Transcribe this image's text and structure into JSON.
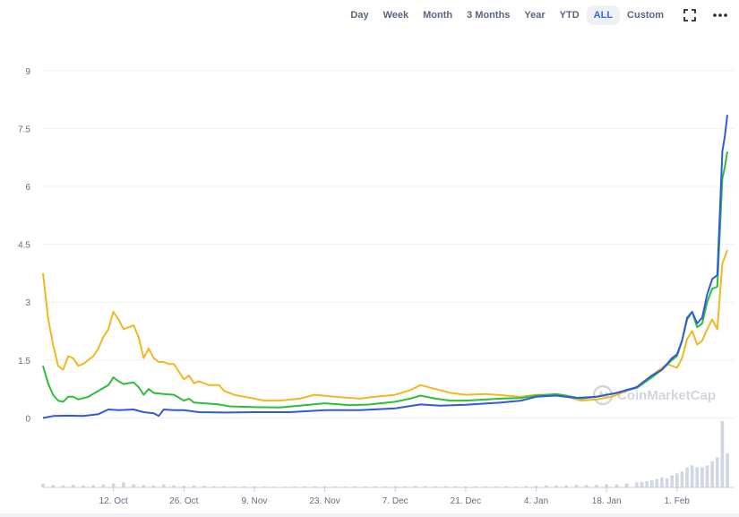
{
  "toolbar": {
    "ranges": [
      "Day",
      "Week",
      "Month",
      "3 Months",
      "Year",
      "YTD",
      "ALL",
      "Custom"
    ],
    "active_range": "ALL",
    "fullscreen_icon": "fullscreen-icon",
    "more_icon": "more-dots-icon"
  },
  "watermark": {
    "text": "CoinMarketCap",
    "icon": "coinmarketcap-logo-icon"
  },
  "colors": {
    "blue": "#3358e0",
    "green": "#2ebd3c",
    "yellow": "#f3b71f",
    "grid": "#eef0f3",
    "volume": "#cfd6e4"
  },
  "chart_data": {
    "type": "line",
    "ylim": [
      -1.8,
      9.9
    ],
    "yticks": [
      "0",
      "1.5",
      "3",
      "4.5",
      "6",
      "7.5",
      "9"
    ],
    "x_tick_labels": [
      "12. Oct",
      "26. Oct",
      "9. Nov",
      "23. Nov",
      "7. Dec",
      "21. Dec",
      "4. Jan",
      "18. Jan",
      "1. Feb"
    ],
    "x_tick_dates": [
      "2020-10-12",
      "2020-10-26",
      "2020-11-09",
      "2020-11-23",
      "2020-12-07",
      "2020-12-21",
      "2021-01-04",
      "2021-01-18",
      "2021-02-01"
    ],
    "x_range": [
      "2020-09-28",
      "2021-02-11"
    ],
    "grid": true,
    "series": [
      {
        "color": "yellow",
        "points": [
          [
            "2020-09-28",
            3.75
          ],
          [
            "2020-09-29",
            2.6
          ],
          [
            "2020-09-30",
            1.9
          ],
          [
            "2020-10-01",
            1.35
          ],
          [
            "2020-10-02",
            1.25
          ],
          [
            "2020-10-03",
            1.6
          ],
          [
            "2020-10-04",
            1.55
          ],
          [
            "2020-10-05",
            1.35
          ],
          [
            "2020-10-06",
            1.4
          ],
          [
            "2020-10-07",
            1.5
          ],
          [
            "2020-10-08",
            1.6
          ],
          [
            "2020-10-09",
            1.8
          ],
          [
            "2020-10-10",
            2.1
          ],
          [
            "2020-10-11",
            2.3
          ],
          [
            "2020-10-12",
            2.75
          ],
          [
            "2020-10-13",
            2.55
          ],
          [
            "2020-10-14",
            2.3
          ],
          [
            "2020-10-15",
            2.35
          ],
          [
            "2020-10-16",
            2.4
          ],
          [
            "2020-10-17",
            2.1
          ],
          [
            "2020-10-18",
            1.55
          ],
          [
            "2020-10-19",
            1.8
          ],
          [
            "2020-10-20",
            1.55
          ],
          [
            "2020-10-21",
            1.45
          ],
          [
            "2020-10-22",
            1.45
          ],
          [
            "2020-10-23",
            1.4
          ],
          [
            "2020-10-24",
            1.4
          ],
          [
            "2020-10-25",
            1.2
          ],
          [
            "2020-10-26",
            1.0
          ],
          [
            "2020-10-27",
            1.1
          ],
          [
            "2020-10-28",
            0.9
          ],
          [
            "2020-10-29",
            0.95
          ],
          [
            "2020-10-31",
            0.85
          ],
          [
            "2020-11-02",
            0.85
          ],
          [
            "2020-11-03",
            0.7
          ],
          [
            "2020-11-05",
            0.6
          ],
          [
            "2020-11-07",
            0.55
          ],
          [
            "2020-11-09",
            0.5
          ],
          [
            "2020-11-11",
            0.45
          ],
          [
            "2020-11-14",
            0.45
          ],
          [
            "2020-11-18",
            0.5
          ],
          [
            "2020-11-21",
            0.6
          ],
          [
            "2020-11-25",
            0.55
          ],
          [
            "2020-11-30",
            0.5
          ],
          [
            "2020-12-03",
            0.55
          ],
          [
            "2020-12-07",
            0.6
          ],
          [
            "2020-12-10",
            0.72
          ],
          [
            "2020-12-12",
            0.85
          ],
          [
            "2020-12-15",
            0.75
          ],
          [
            "2020-12-18",
            0.65
          ],
          [
            "2020-12-21",
            0.6
          ],
          [
            "2020-12-25",
            0.62
          ],
          [
            "2020-12-29",
            0.58
          ],
          [
            "2021-01-01",
            0.55
          ],
          [
            "2021-01-04",
            0.6
          ],
          [
            "2021-01-07",
            0.6
          ],
          [
            "2021-01-10",
            0.55
          ],
          [
            "2021-01-13",
            0.45
          ],
          [
            "2021-01-16",
            0.48
          ],
          [
            "2021-01-19",
            0.55
          ],
          [
            "2021-01-22",
            0.7
          ],
          [
            "2021-01-24",
            0.8
          ],
          [
            "2021-01-26",
            1.0
          ],
          [
            "2021-01-28",
            1.2
          ],
          [
            "2021-01-30",
            1.4
          ],
          [
            "2021-02-01",
            1.3
          ],
          [
            "2021-02-02",
            1.55
          ],
          [
            "2021-02-03",
            2.05
          ],
          [
            "2021-02-04",
            2.25
          ],
          [
            "2021-02-05",
            1.9
          ],
          [
            "2021-02-06",
            2.0
          ],
          [
            "2021-02-07",
            2.3
          ],
          [
            "2021-02-08",
            2.55
          ],
          [
            "2021-02-09",
            2.3
          ],
          [
            "2021-02-10",
            4.0
          ],
          [
            "2021-02-11",
            4.35
          ]
        ]
      },
      {
        "color": "green",
        "points": [
          [
            "2020-09-28",
            1.35
          ],
          [
            "2020-09-29",
            0.9
          ],
          [
            "2020-09-30",
            0.6
          ],
          [
            "2020-10-01",
            0.45
          ],
          [
            "2020-10-02",
            0.42
          ],
          [
            "2020-10-03",
            0.55
          ],
          [
            "2020-10-04",
            0.55
          ],
          [
            "2020-10-05",
            0.48
          ],
          [
            "2020-10-07",
            0.55
          ],
          [
            "2020-10-09",
            0.7
          ],
          [
            "2020-10-11",
            0.85
          ],
          [
            "2020-10-12",
            1.05
          ],
          [
            "2020-10-13",
            0.95
          ],
          [
            "2020-10-14",
            0.88
          ],
          [
            "2020-10-16",
            0.92
          ],
          [
            "2020-10-17",
            0.8
          ],
          [
            "2020-10-18",
            0.6
          ],
          [
            "2020-10-19",
            0.75
          ],
          [
            "2020-10-20",
            0.65
          ],
          [
            "2020-10-22",
            0.62
          ],
          [
            "2020-10-24",
            0.6
          ],
          [
            "2020-10-26",
            0.45
          ],
          [
            "2020-10-27",
            0.5
          ],
          [
            "2020-10-28",
            0.4
          ],
          [
            "2020-11-02",
            0.35
          ],
          [
            "2020-11-04",
            0.3
          ],
          [
            "2020-11-09",
            0.28
          ],
          [
            "2020-11-14",
            0.27
          ],
          [
            "2020-11-18",
            0.32
          ],
          [
            "2020-11-23",
            0.38
          ],
          [
            "2020-11-28",
            0.33
          ],
          [
            "2020-12-02",
            0.35
          ],
          [
            "2020-12-07",
            0.42
          ],
          [
            "2020-12-10",
            0.5
          ],
          [
            "2020-12-12",
            0.58
          ],
          [
            "2020-12-15",
            0.5
          ],
          [
            "2020-12-18",
            0.45
          ],
          [
            "2020-12-21",
            0.45
          ],
          [
            "2020-12-28",
            0.5
          ],
          [
            "2021-01-01",
            0.52
          ],
          [
            "2021-01-04",
            0.58
          ],
          [
            "2021-01-08",
            0.62
          ],
          [
            "2021-01-10",
            0.58
          ],
          [
            "2021-01-13",
            0.5
          ],
          [
            "2021-01-16",
            0.55
          ],
          [
            "2021-01-20",
            0.65
          ],
          [
            "2021-01-24",
            0.78
          ],
          [
            "2021-01-27",
            1.05
          ],
          [
            "2021-01-29",
            1.25
          ],
          [
            "2021-01-31",
            1.5
          ],
          [
            "2021-02-01",
            1.6
          ],
          [
            "2021-02-02",
            2.0
          ],
          [
            "2021-02-03",
            2.55
          ],
          [
            "2021-02-04",
            2.75
          ],
          [
            "2021-02-05",
            2.35
          ],
          [
            "2021-02-06",
            2.45
          ],
          [
            "2021-02-07",
            3.0
          ],
          [
            "2021-02-08",
            3.35
          ],
          [
            "2021-02-09",
            3.4
          ],
          [
            "2021-02-10",
            6.2
          ],
          [
            "2021-02-10T12",
            6.5
          ],
          [
            "2021-02-11",
            6.9
          ]
        ]
      },
      {
        "color": "blue",
        "points": [
          [
            "2020-09-28",
            0.0
          ],
          [
            "2020-09-30",
            0.05
          ],
          [
            "2020-10-03",
            0.06
          ],
          [
            "2020-10-06",
            0.05
          ],
          [
            "2020-10-09",
            0.1
          ],
          [
            "2020-10-11",
            0.22
          ],
          [
            "2020-10-13",
            0.2
          ],
          [
            "2020-10-16",
            0.22
          ],
          [
            "2020-10-18",
            0.15
          ],
          [
            "2020-10-20",
            0.12
          ],
          [
            "2020-10-21",
            0.05
          ],
          [
            "2020-10-22",
            0.22
          ],
          [
            "2020-10-24",
            0.2
          ],
          [
            "2020-10-26",
            0.2
          ],
          [
            "2020-10-29",
            0.15
          ],
          [
            "2020-11-03",
            0.14
          ],
          [
            "2020-11-09",
            0.15
          ],
          [
            "2020-11-16",
            0.15
          ],
          [
            "2020-11-23",
            0.2
          ],
          [
            "2020-11-30",
            0.2
          ],
          [
            "2020-12-07",
            0.25
          ],
          [
            "2020-12-12",
            0.35
          ],
          [
            "2020-12-16",
            0.32
          ],
          [
            "2020-12-21",
            0.34
          ],
          [
            "2020-12-28",
            0.4
          ],
          [
            "2021-01-01",
            0.45
          ],
          [
            "2021-01-04",
            0.55
          ],
          [
            "2021-01-08",
            0.58
          ],
          [
            "2021-01-12",
            0.52
          ],
          [
            "2021-01-16",
            0.55
          ],
          [
            "2021-01-20",
            0.65
          ],
          [
            "2021-01-24",
            0.8
          ],
          [
            "2021-01-27",
            1.1
          ],
          [
            "2021-01-29",
            1.25
          ],
          [
            "2021-01-31",
            1.55
          ],
          [
            "2021-02-01",
            1.65
          ],
          [
            "2021-02-02",
            2.0
          ],
          [
            "2021-02-03",
            2.6
          ],
          [
            "2021-02-04",
            2.75
          ],
          [
            "2021-02-05",
            2.45
          ],
          [
            "2021-02-06",
            2.6
          ],
          [
            "2021-02-07",
            3.2
          ],
          [
            "2021-02-08",
            3.6
          ],
          [
            "2021-02-09",
            3.7
          ],
          [
            "2021-02-10",
            6.9
          ],
          [
            "2021-02-10T12",
            7.3
          ],
          [
            "2021-02-11",
            7.85
          ]
        ]
      }
    ],
    "volume": {
      "dates": [
        "2020-09-28",
        "2020-09-30",
        "2020-10-02",
        "2020-10-04",
        "2020-10-06",
        "2020-10-08",
        "2020-10-10",
        "2020-10-12",
        "2020-10-14",
        "2020-10-16",
        "2020-10-18",
        "2020-10-20",
        "2020-10-22",
        "2020-10-24",
        "2020-10-26",
        "2020-10-28",
        "2020-10-30",
        "2020-11-01",
        "2020-11-03",
        "2020-11-05",
        "2020-11-07",
        "2020-11-09",
        "2020-11-11",
        "2020-11-13",
        "2020-11-15",
        "2020-11-17",
        "2020-11-19",
        "2020-11-21",
        "2020-11-23",
        "2020-11-25",
        "2020-11-27",
        "2020-11-29",
        "2020-12-01",
        "2020-12-03",
        "2020-12-05",
        "2020-12-07",
        "2020-12-09",
        "2020-12-11",
        "2020-12-13",
        "2020-12-15",
        "2020-12-17",
        "2020-12-19",
        "2020-12-21",
        "2020-12-23",
        "2020-12-25",
        "2020-12-27",
        "2020-12-29",
        "2020-12-31",
        "2021-01-02",
        "2021-01-04",
        "2021-01-06",
        "2021-01-08",
        "2021-01-10",
        "2021-01-12",
        "2021-01-14",
        "2021-01-16",
        "2021-01-18",
        "2021-01-20",
        "2021-01-22",
        "2021-01-24",
        "2021-01-25",
        "2021-01-26",
        "2021-01-27",
        "2021-01-28",
        "2021-01-29",
        "2021-01-30",
        "2021-01-31",
        "2021-02-01",
        "2021-02-02",
        "2021-02-03",
        "2021-02-04",
        "2021-02-05",
        "2021-02-06",
        "2021-02-07",
        "2021-02-08",
        "2021-02-09",
        "2021-02-10",
        "2021-02-11"
      ],
      "values": [
        0.18,
        0.12,
        0.1,
        0.12,
        0.1,
        0.12,
        0.15,
        0.2,
        0.25,
        0.15,
        0.12,
        0.1,
        0.15,
        0.1,
        0.08,
        0.1,
        0.08,
        0.06,
        0.06,
        0.05,
        0.06,
        0.05,
        0.05,
        0.04,
        0.04,
        0.05,
        0.05,
        0.06,
        0.06,
        0.05,
        0.05,
        0.05,
        0.05,
        0.05,
        0.05,
        0.06,
        0.06,
        0.08,
        0.07,
        0.06,
        0.06,
        0.06,
        0.06,
        0.05,
        0.05,
        0.05,
        0.06,
        0.06,
        0.07,
        0.08,
        0.1,
        0.1,
        0.1,
        0.12,
        0.12,
        0.12,
        0.15,
        0.15,
        0.2,
        0.25,
        0.28,
        0.3,
        0.35,
        0.42,
        0.5,
        0.45,
        0.6,
        0.7,
        0.8,
        1.0,
        1.1,
        1.0,
        1.0,
        1.1,
        1.3,
        1.5,
        3.3,
        1.7
      ]
    }
  }
}
